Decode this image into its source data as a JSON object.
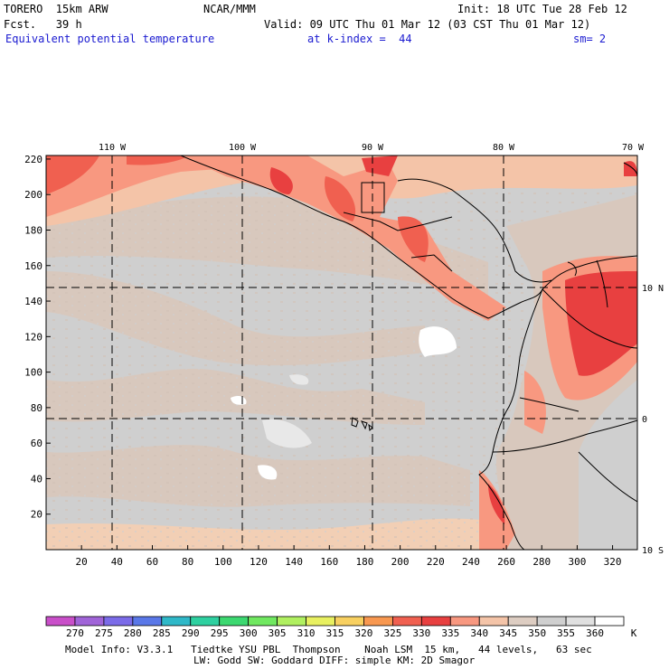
{
  "header": {
    "model": "TORERO  15km ARW",
    "center": "NCAR/MMM",
    "init": "Init: 18 UTC Tue 28 Feb 12",
    "fcst": "Fcst.   39 h",
    "valid": "Valid: 09 UTC Thu 01 Mar 12 (03 CST Thu 01 Mar 12)",
    "field": "Equivalent potential temperature",
    "level": "at k-index =  44",
    "smooth": "sm= 2"
  },
  "map": {
    "lon_labels": [
      "110 W",
      "100 W",
      "90 W",
      "80 W",
      "70 W"
    ],
    "lat_labels": [
      "10 N",
      "0",
      "10 S"
    ],
    "y_ticks": [
      "220",
      "200",
      "180",
      "160",
      "140",
      "120",
      "100",
      "80",
      "60",
      "40",
      "20"
    ],
    "x_ticks": [
      "20",
      "40",
      "60",
      "80",
      "100",
      "120",
      "140",
      "160",
      "180",
      "200",
      "220",
      "240",
      "260",
      "280",
      "300",
      "320"
    ]
  },
  "legend": {
    "unit": "K",
    "labels": [
      "270",
      "275",
      "280",
      "285",
      "290",
      "295",
      "300",
      "305",
      "310",
      "315",
      "320",
      "325",
      "330",
      "335",
      "340",
      "345",
      "350",
      "355",
      "360"
    ],
    "colors": [
      "#c94fc9",
      "#a064d8",
      "#7b6be8",
      "#5a78e8",
      "#2fb8c8",
      "#2ed0a0",
      "#3cd870",
      "#70e860",
      "#b0f060",
      "#e8f060",
      "#f8d060",
      "#f89850",
      "#f06050",
      "#e84040",
      "#f89880",
      "#f4c4a8",
      "#ddcdc2",
      "#cfcfcf",
      "#e0e0e0",
      "#ffffff"
    ]
  },
  "footer": {
    "line1": "Model Info: V3.3.1   Tiedtke YSU PBL  Thompson    Noah LSM  15 km,   44 levels,   63 sec",
    "line2": "LW: Godd SW: Goddard DIFF: simple KM: 2D Smagor"
  }
}
